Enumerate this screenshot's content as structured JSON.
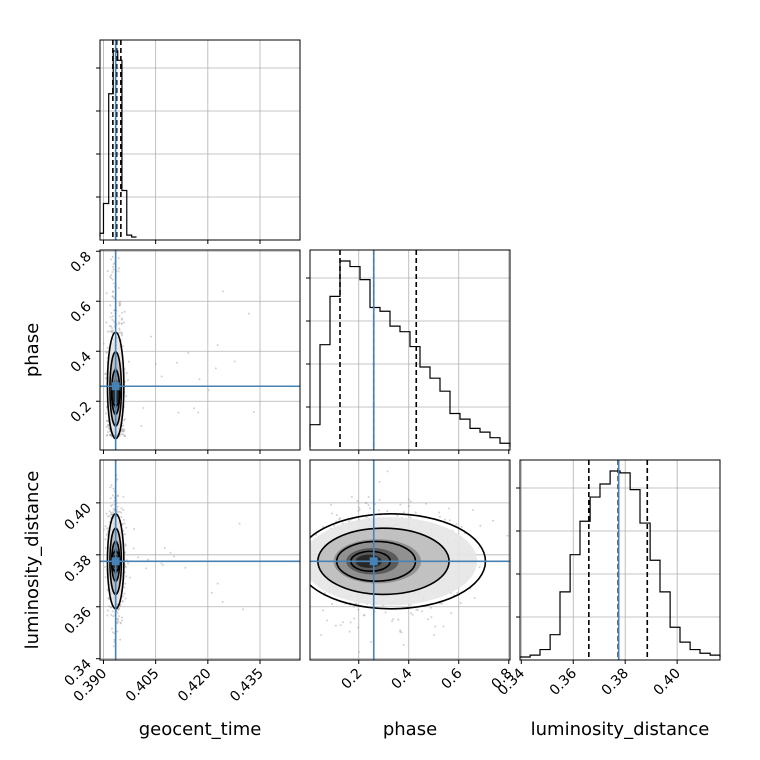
{
  "chart_data": {
    "type": "corner",
    "parameters": [
      "geocent_time",
      "phase",
      "luminosity_distance"
    ],
    "axis_labels": {
      "geocent_time": "geocent_time",
      "phase": "phase",
      "luminosity_distance": "luminosity_distance"
    },
    "ranges": {
      "geocent_time": [
        0.389,
        0.4465
      ],
      "phase": [
        0.005,
        0.805
      ],
      "luminosity_distance": [
        0.3395,
        0.4165
      ]
    },
    "ticks": {
      "geocent_time": [
        0.39,
        0.405,
        0.42,
        0.435
      ],
      "phase": [
        0.2,
        0.4,
        0.6,
        0.8
      ],
      "luminosity_distance": [
        0.34,
        0.36,
        0.38,
        0.4
      ]
    },
    "tick_labels": {
      "geocent_time": [
        "0.390",
        "0.405",
        "0.420",
        "0.435"
      ],
      "phase": [
        "0.2",
        "0.4",
        "0.6",
        "0.8"
      ],
      "luminosity_distance": [
        "0.34",
        "0.36",
        "0.38",
        "0.40"
      ]
    },
    "truths": {
      "geocent_time": 0.3935,
      "phase": 0.26,
      "luminosity_distance": 0.3775
    },
    "quantiles": {
      "geocent_time": [
        0.3927,
        0.3938,
        0.395
      ],
      "phase": [
        0.125,
        0.26,
        0.43
      ],
      "luminosity_distance": [
        0.366,
        0.3773,
        0.3885
      ]
    },
    "histograms": {
      "geocent_time": {
        "edges": [
          0.389,
          0.39,
          0.3915,
          0.3928,
          0.3941,
          0.3953,
          0.3967,
          0.3981,
          0.3995
        ],
        "heights": [
          0.02,
          0.18,
          0.77,
          1.0,
          0.95,
          0.25,
          0.01,
          0.0
        ]
      },
      "phase": {
        "edges": [
          0.005,
          0.045,
          0.085,
          0.125,
          0.165,
          0.205,
          0.245,
          0.285,
          0.325,
          0.365,
          0.405,
          0.445,
          0.485,
          0.525,
          0.565,
          0.605,
          0.645,
          0.685,
          0.725,
          0.765,
          0.805
        ],
        "heights": [
          0.12,
          0.55,
          0.81,
          1.0,
          0.97,
          0.9,
          0.75,
          0.73,
          0.65,
          0.62,
          0.54,
          0.43,
          0.37,
          0.3,
          0.18,
          0.15,
          0.1,
          0.08,
          0.05,
          0.02
        ]
      },
      "luminosity_distance": {
        "edges": [
          0.3395,
          0.3434,
          0.3472,
          0.3511,
          0.3549,
          0.3588,
          0.3626,
          0.3665,
          0.3703,
          0.3742,
          0.378,
          0.3819,
          0.3857,
          0.3896,
          0.3934,
          0.3973,
          0.4011,
          0.405,
          0.4088,
          0.4127,
          0.4165
        ],
        "heights": [
          0.0,
          0.01,
          0.04,
          0.12,
          0.35,
          0.55,
          0.73,
          0.86,
          0.93,
          1.0,
          0.99,
          0.9,
          0.72,
          0.52,
          0.35,
          0.16,
          0.08,
          0.04,
          0.02,
          0.01
        ]
      }
    },
    "pairs": [
      {
        "x": "geocent_time",
        "y": "phase",
        "center": [
          0.3935,
          0.26
        ],
        "spread": [
          0.0011,
          0.11
        ]
      },
      {
        "x": "geocent_time",
        "y": "luminosity_distance",
        "center": [
          0.3935,
          0.3775
        ],
        "spread": [
          0.0011,
          0.0085
        ]
      },
      {
        "x": "phase",
        "y": "luminosity_distance",
        "center": [
          0.24,
          0.3775
        ],
        "spread": [
          0.14,
          0.0085
        ]
      }
    ],
    "colors": {
      "truth": "#4682b4",
      "line": "#000000",
      "grid": "#b0b0b0",
      "scatter": "#9a9a9a"
    },
    "grid": true
  }
}
